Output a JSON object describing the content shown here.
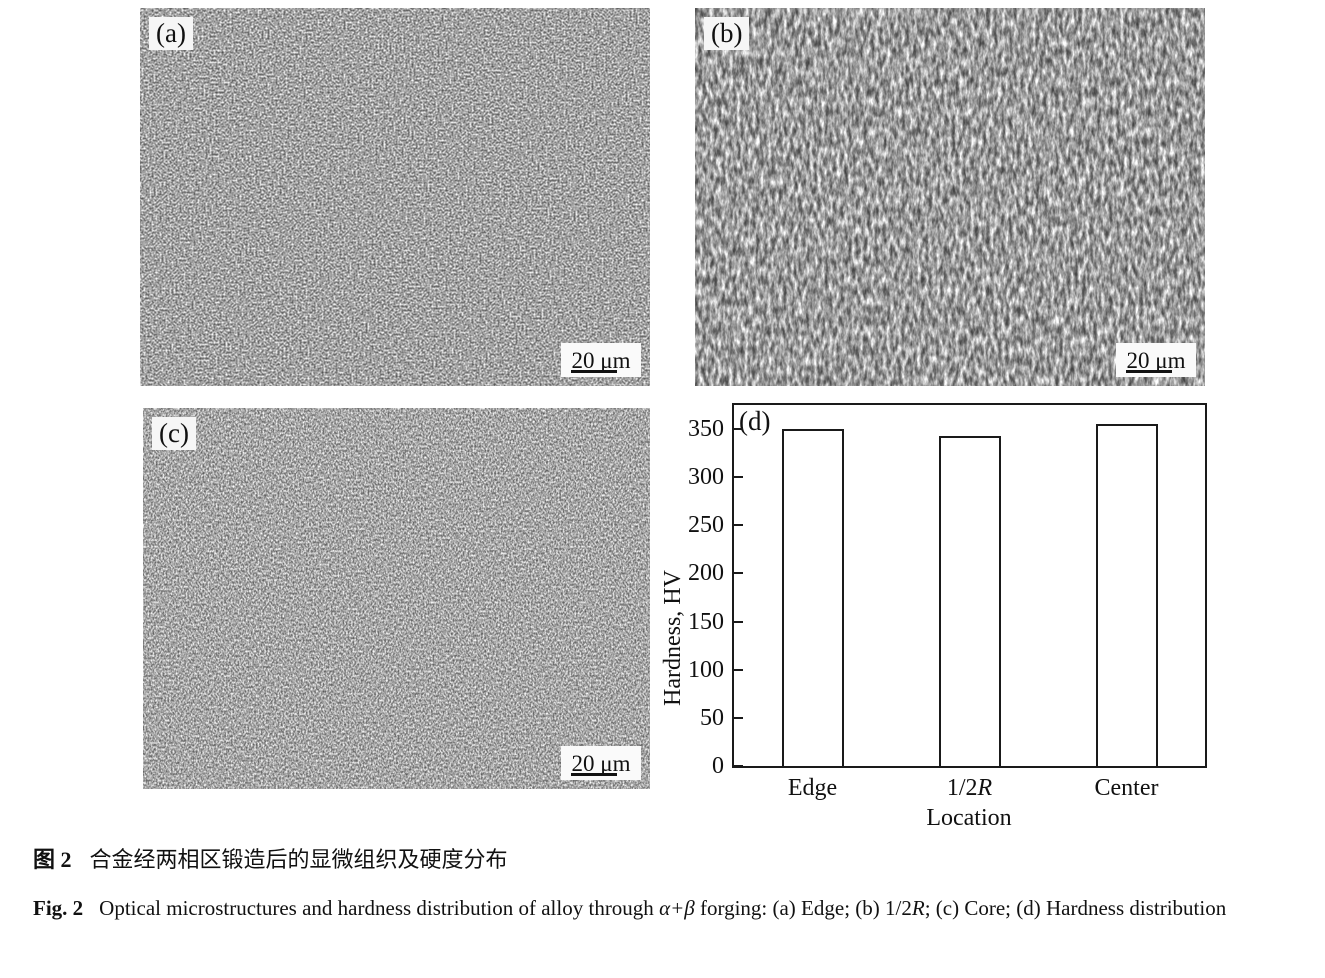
{
  "figure": {
    "panels": {
      "a": {
        "label": "(a)",
        "scale_label": "20 μm"
      },
      "b": {
        "label": "(b)",
        "scale_label": "20 μm"
      },
      "c": {
        "label": "(c)",
        "scale_label": "20 μm"
      },
      "d": {
        "label": "(d)"
      }
    }
  },
  "chart_data": {
    "type": "bar",
    "panel_label": "(d)",
    "categories": [
      "Edge",
      "1/2R",
      "Center"
    ],
    "values": [
      350,
      343,
      355
    ],
    "title": "",
    "xlabel": "Location",
    "ylabel": "Hardness, HV",
    "ylim": [
      0,
      375
    ],
    "yticks": [
      0,
      50,
      100,
      150,
      200,
      250,
      300,
      350
    ],
    "bar_fill": "#ffffff",
    "bar_border": "#1a1a1a",
    "grid": false,
    "legend_position": "none"
  },
  "caption": {
    "zh_label": "图 2",
    "zh_text": "合金经两相区锻造后的显微组织及硬度分布",
    "en_label": "Fig. 2",
    "en_part1": "Optical microstructures and hardness distribution of alloy through ",
    "en_italic1": "α+β",
    "en_part2": " forging: (a) Edge; (b) 1/2",
    "en_italic2": "R",
    "en_part3": "; (c) Core; (d) Hardness distribution"
  }
}
